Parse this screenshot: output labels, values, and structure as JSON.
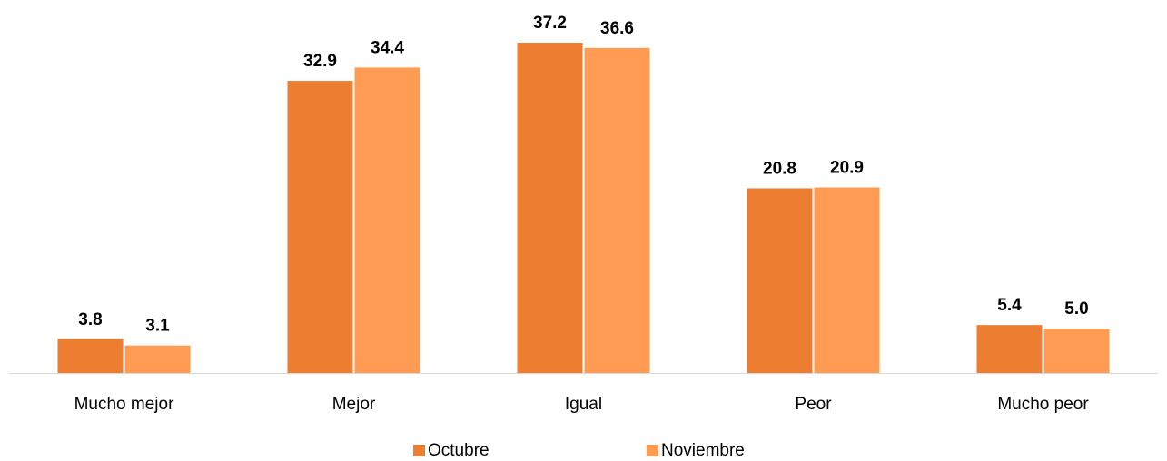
{
  "chart_data": {
    "type": "bar",
    "categories": [
      "Mucho mejor",
      "Mejor",
      "Igual",
      "Peor",
      "Mucho peor"
    ],
    "series": [
      {
        "name": "Octubre",
        "color": "#ED7D31",
        "values": [
          3.8,
          32.9,
          37.2,
          20.8,
          5.4
        ],
        "value_labels": [
          "3.8",
          "32.9",
          "37.2",
          "20.8",
          "5.4"
        ]
      },
      {
        "name": "Noviembre",
        "color": "#FF9B52",
        "values": [
          3.1,
          34.4,
          36.6,
          20.9,
          5.0
        ],
        "value_labels": [
          "3.1",
          "34.4",
          "36.6",
          "20.9",
          "5.0"
        ]
      }
    ],
    "legend": "bottom"
  }
}
